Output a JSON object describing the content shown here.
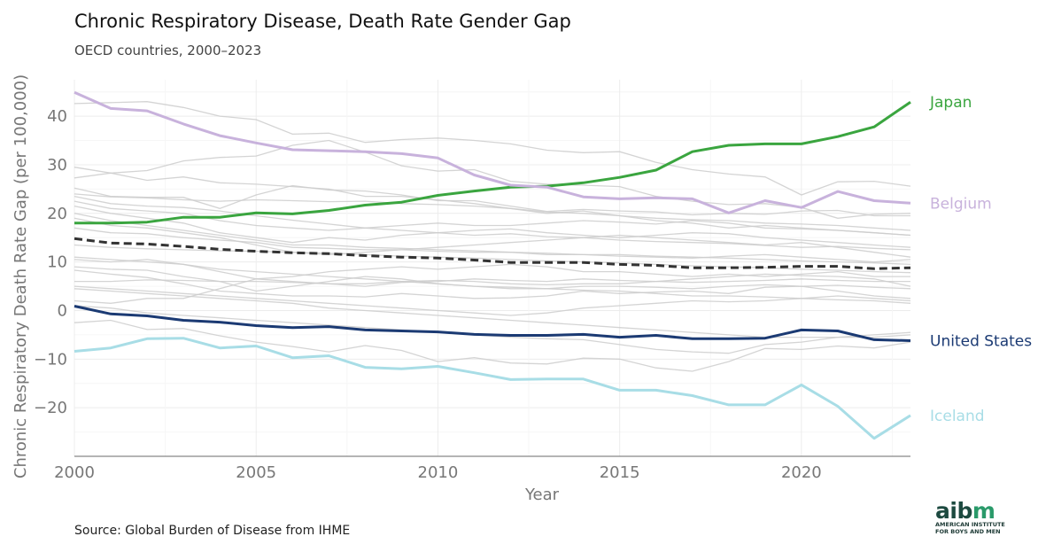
{
  "header": {
    "title": "Chronic Respiratory Disease, Death Rate Gender Gap",
    "subtitle": "OECD countries, 2000–2023"
  },
  "footer": {
    "source": "Source: Global Burden of Disease from IHME",
    "logo": {
      "word": "aibm",
      "line1": "AMERICAN INSTITUTE",
      "line2": "FOR BOYS AND MEN"
    }
  },
  "chart_data": {
    "type": "line",
    "title": "Chronic Respiratory Disease, Death Rate Gender Gap",
    "subtitle": "OECD countries, 2000–2023",
    "xlabel": "Year",
    "ylabel": "Chronic Respiratory Death Rate Gap (per 100,000)",
    "xlim": [
      2000,
      2023
    ],
    "ylim": [
      -30,
      47.5
    ],
    "xticks": [
      2000,
      2005,
      2010,
      2015,
      2020
    ],
    "yticks": [
      -20,
      -10,
      0,
      10,
      20,
      30,
      40
    ],
    "grid": true,
    "x": [
      2000,
      2001,
      2002,
      2003,
      2004,
      2005,
      2006,
      2007,
      2008,
      2009,
      2010,
      2011,
      2012,
      2013,
      2014,
      2015,
      2016,
      2017,
      2018,
      2019,
      2020,
      2021,
      2022,
      2023
    ],
    "highlighted": [
      {
        "name": "Japan",
        "color": "#3aa53f",
        "values": [
          18,
          18,
          18.2,
          19.2,
          19.2,
          20.1,
          19.9,
          20.6,
          21.7,
          22.3,
          23.7,
          24.6,
          25.4,
          25.6,
          26.3,
          27.4,
          28.9,
          32.7,
          34,
          34.3,
          34.3,
          35.8,
          37.8,
          42.9
        ]
      },
      {
        "name": "Belgium",
        "color": "#c8b2dc",
        "values": [
          44.9,
          41.6,
          41.1,
          38.4,
          36,
          34.5,
          33.1,
          32.9,
          32.7,
          32.3,
          31.4,
          27.9,
          25.8,
          25.4,
          23.4,
          23,
          23.2,
          23,
          20.1,
          22.6,
          21.2,
          24.5,
          22.6,
          22.1
        ]
      },
      {
        "name": "United States",
        "color": "#1b3a73",
        "values": [
          0.9,
          -0.7,
          -1.1,
          -2,
          -2.4,
          -3.1,
          -3.5,
          -3.3,
          -4,
          -4.2,
          -4.4,
          -4.9,
          -5.1,
          -5.1,
          -4.9,
          -5.5,
          -5.1,
          -5.8,
          -5.8,
          -5.7,
          -4,
          -4.2,
          -6,
          -6.2
        ]
      },
      {
        "name": "Iceland",
        "color": "#a8dde6",
        "values": [
          -8.4,
          -7.7,
          -5.8,
          -5.7,
          -7.7,
          -7.3,
          -9.7,
          -9.3,
          -11.7,
          -12,
          -11.5,
          -12.8,
          -14.2,
          -14.1,
          -14.1,
          -16.4,
          -16.4,
          -17.5,
          -19.4,
          -19.4,
          -15.3,
          -19.7,
          -26.3,
          -21.6
        ]
      }
    ],
    "average": {
      "color": "#333333",
      "style": "dashed",
      "values": [
        14.8,
        13.9,
        13.7,
        13.2,
        12.6,
        12.2,
        11.9,
        11.7,
        11.3,
        11,
        10.8,
        10.4,
        9.9,
        9.9,
        9.9,
        9.5,
        9.3,
        8.8,
        8.8,
        8.9,
        9.1,
        9.1,
        8.6,
        8.8
      ]
    },
    "other_countries_color": "#cccccc",
    "other_countries": [
      [
        42.6,
        42.8,
        43,
        41.8,
        40,
        39.3,
        36.3,
        36.5,
        34.6,
        35.2,
        35.5,
        35,
        34.3,
        33,
        32.5,
        32.7,
        30.5,
        29,
        28.1,
        27.5,
        23.8,
        26.5,
        26.6,
        25.6
      ],
      [
        29.5,
        28.3,
        28.8,
        30.8,
        31.5,
        31.8,
        34,
        35,
        32.6,
        29.8,
        28.7,
        29,
        26.6,
        26,
        25.8,
        25.5,
        23.5,
        22.5,
        21.8,
        22,
        21.2,
        19,
        19.8,
        20
      ],
      [
        27.3,
        28.3,
        26.8,
        27.5,
        26.3,
        26,
        25.5,
        25,
        23.5,
        23.5,
        22.8,
        22,
        21,
        20,
        20.5,
        19.5,
        18.5,
        18,
        17,
        17.5,
        17,
        16.5,
        16,
        15.5
      ],
      [
        25.2,
        23.5,
        23.3,
        23.3,
        21,
        23.8,
        25.7,
        24.8,
        24.6,
        23.8,
        22.6,
        22.6,
        21.5,
        20.4,
        20.8,
        20.5,
        20.3,
        19.7,
        20,
        19.8,
        20.5,
        20.6,
        19.5,
        19.5
      ],
      [
        24,
        23.4,
        23.2,
        22.8,
        22.5,
        22.8,
        22.6,
        22.4,
        22.5,
        22,
        21.8,
        21.5,
        21,
        20.3,
        20,
        19.5,
        19,
        18.7,
        18.5,
        18,
        17.8,
        17.5,
        17,
        16.5
      ],
      [
        23.5,
        22,
        21.5,
        21.2,
        20.5,
        19.5,
        18.6,
        17.8,
        17,
        16.5,
        16,
        15.5,
        15.8,
        15.2,
        15,
        14.5,
        14.2,
        14,
        13.8,
        13.4,
        13,
        13.2,
        12.8,
        12.5
      ],
      [
        22.5,
        21,
        20.5,
        20,
        18.5,
        17.5,
        17,
        16.5,
        17,
        17.5,
        18,
        17.5,
        17.5,
        18,
        18.5,
        18.2,
        17.8,
        18.5,
        18,
        17,
        16.8,
        16.5,
        16,
        15.5
      ],
      [
        21.5,
        20,
        19,
        18,
        16,
        15,
        14,
        15,
        14.5,
        15.5,
        16,
        16.5,
        16.8,
        16,
        15.5,
        15,
        15.5,
        16,
        15.8,
        15,
        14.5,
        14,
        13.5,
        13
      ],
      [
        20,
        18.5,
        17.5,
        16.5,
        15.5,
        14.5,
        13.5,
        13.5,
        13,
        12.8,
        12.5,
        12.3,
        12,
        11.8,
        11.5,
        11.5,
        11.2,
        11,
        10.8,
        10.5,
        10.2,
        10,
        9.8,
        9.5
      ],
      [
        19,
        17.5,
        17,
        16,
        15,
        13.5,
        12,
        11.5,
        12,
        12.5,
        13,
        13.5,
        14,
        14.5,
        15,
        15.5,
        15,
        14.5,
        14,
        13.5,
        14,
        13,
        12,
        11
      ],
      [
        17,
        16,
        15.8,
        15,
        14.5,
        14,
        13,
        12.8,
        12.5,
        12.5,
        12.2,
        12,
        12,
        11.5,
        11.5,
        11.2,
        11,
        10.8,
        11.2,
        11.5,
        11,
        10.5,
        10,
        10.5
      ],
      [
        13.5,
        13,
        12.7,
        12.5,
        12.3,
        12.2,
        12,
        11.8,
        11.5,
        11.2,
        11,
        10.8,
        10.5,
        10.2,
        10,
        9.8,
        9.5,
        9.2,
        9,
        8.8,
        8.5,
        8.3,
        8,
        7.8
      ],
      [
        11,
        10.5,
        10,
        9.5,
        8.5,
        8,
        7.5,
        7,
        6.5,
        6,
        5.5,
        5,
        4.8,
        4.5,
        4.2,
        4,
        3.5,
        3,
        3,
        2.8,
        2.5,
        2.2,
        2,
        1.5
      ],
      [
        10.5,
        10,
        10.5,
        9.5,
        8,
        6.5,
        6,
        5.5,
        5,
        5.8,
        6,
        6.5,
        6.2,
        6,
        6.5,
        6.2,
        6,
        5.8,
        6,
        6.2,
        6.5,
        6.2,
        6,
        6
      ],
      [
        9,
        8.5,
        8.3,
        7,
        6,
        4,
        5,
        6,
        7,
        6.5,
        5.5,
        5,
        4.5,
        4.5,
        5,
        5,
        4.8,
        4.5,
        5,
        5.3,
        5,
        5.2,
        4.8,
        4.5
      ],
      [
        8.3,
        7.5,
        6.8,
        5.5,
        4,
        3.5,
        3,
        3,
        2.8,
        3.5,
        3,
        2.5,
        2.6,
        3,
        4,
        3.5,
        3.8,
        4,
        3.5,
        4.8,
        5,
        4,
        3,
        2.5
      ],
      [
        6,
        6,
        6.3,
        6.2,
        6,
        6,
        5.8,
        5.5,
        5.5,
        6,
        6.2,
        6,
        5.5,
        5.3,
        5.5,
        5.5,
        6,
        6.5,
        7,
        7.5,
        7.2,
        7,
        6.5,
        5
      ],
      [
        5,
        4.5,
        4,
        3.5,
        3,
        2.5,
        2,
        1.5,
        1,
        0.5,
        0,
        -0.5,
        -1,
        -0.5,
        0.5,
        1,
        1.5,
        2,
        1.8,
        2,
        2.5,
        3,
        2.5,
        2
      ],
      [
        4.5,
        4,
        3.5,
        3,
        2.5,
        2,
        1.5,
        0.5,
        0,
        -0.5,
        -1,
        -1.5,
        -2,
        -2.5,
        -3,
        -3.5,
        -4,
        -4.5,
        -5,
        -5.5,
        -5.5,
        -5.5,
        -5.5,
        -5
      ],
      [
        2,
        1.5,
        2.5,
        2.5,
        4.5,
        6.5,
        7,
        8,
        8.5,
        9,
        8.5,
        9,
        9.5,
        9,
        8,
        8,
        7.5,
        7,
        7.5,
        7,
        7.5,
        8,
        7,
        7
      ],
      [
        -2.5,
        -2,
        -3.9,
        -3.7,
        -5.2,
        -6.5,
        -7.4,
        -8.5,
        -7.2,
        -8.2,
        -10.5,
        -9.7,
        -10.8,
        -11,
        -9.8,
        -10,
        -11.8,
        -12.5,
        -10.5,
        -7.8,
        -8,
        -7.3,
        -7.7,
        -6.5
      ],
      [
        1,
        0.5,
        -0.5,
        -1,
        -1.5,
        -2,
        -2.5,
        -3,
        -3.5,
        -4,
        -4.5,
        -5,
        -5.5,
        -5.8,
        -6,
        -7,
        -8,
        -8.5,
        -8.8,
        -7,
        -6.5,
        -5.5,
        -5,
        -4.5
      ]
    ]
  }
}
